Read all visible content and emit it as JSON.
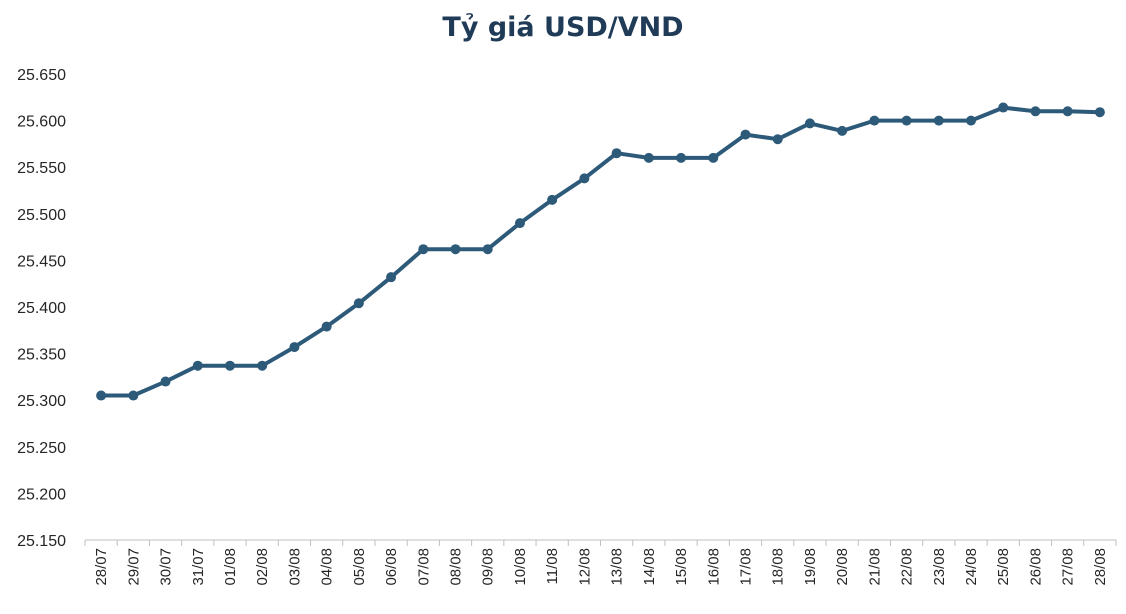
{
  "chart_data": {
    "type": "line",
    "title": "Tỷ giá USD/VND",
    "xlabel": "",
    "ylabel": "",
    "ylim": [
      25150,
      25650
    ],
    "y_ticks": [
      "25.150",
      "25.200",
      "25.250",
      "25.300",
      "25.350",
      "25.400",
      "25.450",
      "25.500",
      "25.550",
      "25.600",
      "25.650"
    ],
    "grid": false,
    "categories": [
      "28/07",
      "29/07",
      "30/07",
      "31/07",
      "01/08",
      "02/08",
      "03/08",
      "04/08",
      "05/08",
      "06/08",
      "07/08",
      "08/08",
      "09/08",
      "10/08",
      "11/08",
      "12/08",
      "13/08",
      "14/08",
      "15/08",
      "16/08",
      "17/08",
      "18/08",
      "19/08",
      "20/08",
      "21/08",
      "22/08",
      "23/08",
      "24/08",
      "25/08",
      "26/08",
      "27/08",
      "28/08"
    ],
    "series": [
      {
        "values": [
          25305,
          25305,
          25320,
          25337,
          25337,
          25337,
          25357,
          25379,
          25404,
          25432,
          25462,
          25462,
          25462,
          25490,
          25515,
          25538,
          25565,
          25560,
          25560,
          25560,
          25585,
          25580,
          25597,
          25589,
          25600,
          25600,
          25600,
          25600,
          25614,
          25610,
          25610,
          25609
        ],
        "color": "#2e5a7a"
      }
    ]
  }
}
